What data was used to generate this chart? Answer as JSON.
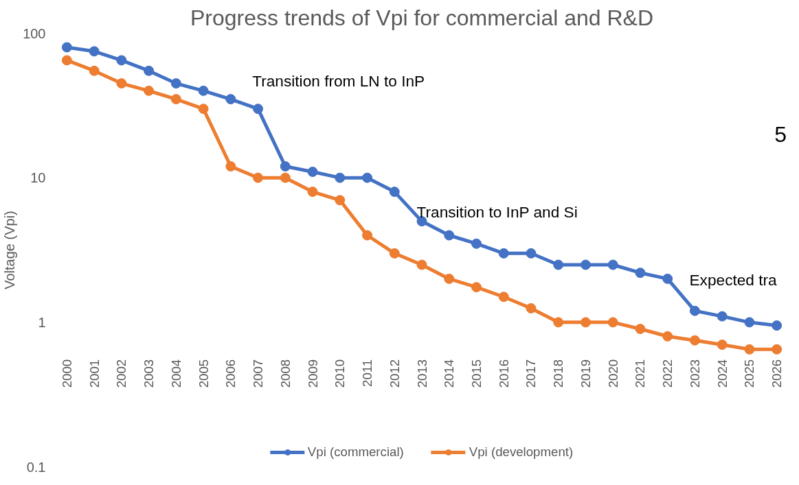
{
  "chart_data": {
    "type": "line",
    "title": "Progress trends of Vpi for commercial and R&D",
    "ylabel": "Voltage (Vpi)",
    "categories": [
      "2000",
      "2001",
      "2002",
      "2003",
      "2004",
      "2005",
      "2006",
      "2007",
      "2008",
      "2009",
      "2010",
      "2011",
      "2012",
      "2013",
      "2014",
      "2015",
      "2016",
      "2017",
      "2018",
      "2019",
      "2020",
      "2021",
      "2022",
      "2023",
      "2024",
      "2025",
      "2026"
    ],
    "series": [
      {
        "name": "Vpi (commercial)",
        "color": "#4472c4",
        "values": [
          80,
          75,
          65,
          55,
          45,
          40,
          35,
          30,
          12,
          11,
          10,
          10,
          8,
          5,
          4,
          3.5,
          3,
          3,
          2.5,
          2.5,
          2.5,
          2.2,
          2,
          1.2,
          1.1,
          1.0,
          0.95
        ]
      },
      {
        "name": "Vpi (development)",
        "color": "#ed7d31",
        "values": [
          65,
          55,
          45,
          40,
          35,
          30,
          12,
          10,
          10,
          8,
          7,
          4,
          3,
          2.5,
          2,
          1.75,
          1.5,
          1.25,
          1,
          1,
          1,
          0.9,
          0.8,
          0.75,
          0.7,
          0.65,
          0.65
        ]
      }
    ],
    "log": "y",
    "ylim": [
      0.1,
      100
    ],
    "yticks": [
      0.1,
      1,
      10,
      100
    ],
    "grid": false,
    "legend": "bottom",
    "marker": "circle",
    "line_style": "solid",
    "annotations": [
      "Transition from LN to InP",
      "Transition to InP and Si",
      "Expected tra",
      "5"
    ]
  }
}
